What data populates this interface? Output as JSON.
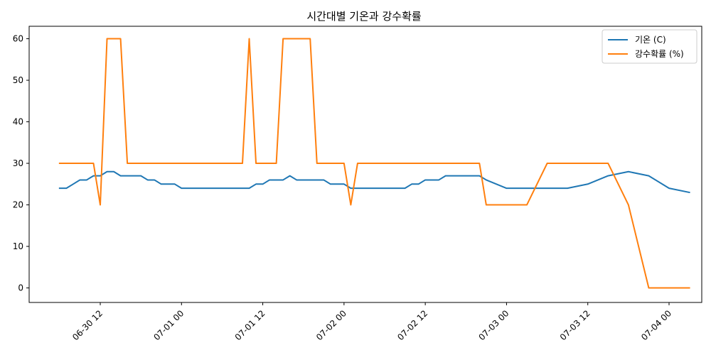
{
  "chart_data": {
    "type": "line",
    "title": "시간대별 기온과 강수확률",
    "xlabel": "",
    "ylabel": "",
    "ylim": [
      -3.5,
      63
    ],
    "x_ticks": [
      "06-30 12",
      "07-01 00",
      "07-01 12",
      "07-02 00",
      "07-02 12",
      "07-03 00",
      "07-03 12",
      "07-04 00"
    ],
    "x_tick_hours": [
      12,
      24,
      36,
      48,
      60,
      72,
      84,
      96
    ],
    "y_ticks": [
      0,
      10,
      20,
      30,
      40,
      50,
      60
    ],
    "grid": false,
    "legend_position": "top-right",
    "series": [
      {
        "name": "기온 (C)",
        "color": "#1f77b4",
        "points": [
          [
            6,
            24
          ],
          [
            7,
            24
          ],
          [
            8,
            25
          ],
          [
            9,
            26
          ],
          [
            10,
            26
          ],
          [
            11,
            27
          ],
          [
            12,
            27
          ],
          [
            13,
            28
          ],
          [
            14,
            28
          ],
          [
            15,
            27
          ],
          [
            16,
            27
          ],
          [
            17,
            27
          ],
          [
            18,
            27
          ],
          [
            19,
            26
          ],
          [
            20,
            26
          ],
          [
            21,
            25
          ],
          [
            22,
            25
          ],
          [
            23,
            25
          ],
          [
            24,
            24
          ],
          [
            25,
            24
          ],
          [
            26,
            24
          ],
          [
            27,
            24
          ],
          [
            28,
            24
          ],
          [
            29,
            24
          ],
          [
            30,
            24
          ],
          [
            31,
            24
          ],
          [
            32,
            24
          ],
          [
            33,
            24
          ],
          [
            34,
            24
          ],
          [
            35,
            25
          ],
          [
            36,
            25
          ],
          [
            37,
            26
          ],
          [
            38,
            26
          ],
          [
            39,
            26
          ],
          [
            40,
            27
          ],
          [
            41,
            26
          ],
          [
            42,
            26
          ],
          [
            43,
            26
          ],
          [
            44,
            26
          ],
          [
            45,
            26
          ],
          [
            46,
            25
          ],
          [
            47,
            25
          ],
          [
            48,
            25
          ],
          [
            49,
            24
          ],
          [
            50,
            24
          ],
          [
            51,
            24
          ],
          [
            52,
            24
          ],
          [
            53,
            24
          ],
          [
            54,
            24
          ],
          [
            55,
            24
          ],
          [
            56,
            24
          ],
          [
            57,
            24
          ],
          [
            58,
            25
          ],
          [
            59,
            25
          ],
          [
            60,
            26
          ],
          [
            61,
            26
          ],
          [
            62,
            26
          ],
          [
            63,
            27
          ],
          [
            64,
            27
          ],
          [
            65,
            27
          ],
          [
            66,
            27
          ],
          [
            67,
            27
          ],
          [
            68,
            27
          ],
          [
            69,
            26
          ],
          [
            72,
            24
          ],
          [
            75,
            24
          ],
          [
            78,
            24
          ],
          [
            81,
            24
          ],
          [
            84,
            25
          ],
          [
            87,
            27
          ],
          [
            90,
            28
          ],
          [
            93,
            27
          ],
          [
            96,
            24
          ],
          [
            99,
            23
          ]
        ]
      },
      {
        "name": "강수확률 (%)",
        "color": "#ff7f0e",
        "points": [
          [
            6,
            30
          ],
          [
            7,
            30
          ],
          [
            8,
            30
          ],
          [
            9,
            30
          ],
          [
            10,
            30
          ],
          [
            11,
            30
          ],
          [
            12,
            20
          ],
          [
            13,
            60
          ],
          [
            14,
            60
          ],
          [
            15,
            60
          ],
          [
            16,
            30
          ],
          [
            17,
            30
          ],
          [
            18,
            30
          ],
          [
            19,
            30
          ],
          [
            20,
            30
          ],
          [
            21,
            30
          ],
          [
            22,
            30
          ],
          [
            23,
            30
          ],
          [
            24,
            30
          ],
          [
            25,
            30
          ],
          [
            26,
            30
          ],
          [
            27,
            30
          ],
          [
            28,
            30
          ],
          [
            29,
            30
          ],
          [
            30,
            30
          ],
          [
            31,
            30
          ],
          [
            32,
            30
          ],
          [
            33,
            30
          ],
          [
            34,
            60
          ],
          [
            35,
            30
          ],
          [
            36,
            30
          ],
          [
            37,
            30
          ],
          [
            38,
            30
          ],
          [
            39,
            60
          ],
          [
            40,
            60
          ],
          [
            41,
            60
          ],
          [
            42,
            60
          ],
          [
            43,
            60
          ],
          [
            44,
            30
          ],
          [
            45,
            30
          ],
          [
            46,
            30
          ],
          [
            47,
            30
          ],
          [
            48,
            30
          ],
          [
            49,
            20
          ],
          [
            50,
            30
          ],
          [
            51,
            30
          ],
          [
            52,
            30
          ],
          [
            53,
            30
          ],
          [
            54,
            30
          ],
          [
            55,
            30
          ],
          [
            56,
            30
          ],
          [
            57,
            30
          ],
          [
            58,
            30
          ],
          [
            59,
            30
          ],
          [
            60,
            30
          ],
          [
            61,
            30
          ],
          [
            62,
            30
          ],
          [
            63,
            30
          ],
          [
            64,
            30
          ],
          [
            65,
            30
          ],
          [
            66,
            30
          ],
          [
            67,
            30
          ],
          [
            68,
            30
          ],
          [
            69,
            20
          ],
          [
            72,
            20
          ],
          [
            75,
            20
          ],
          [
            78,
            30
          ],
          [
            81,
            30
          ],
          [
            84,
            30
          ],
          [
            87,
            30
          ],
          [
            90,
            20
          ],
          [
            93,
            0
          ],
          [
            96,
            0
          ],
          [
            99,
            0
          ]
        ]
      }
    ]
  }
}
